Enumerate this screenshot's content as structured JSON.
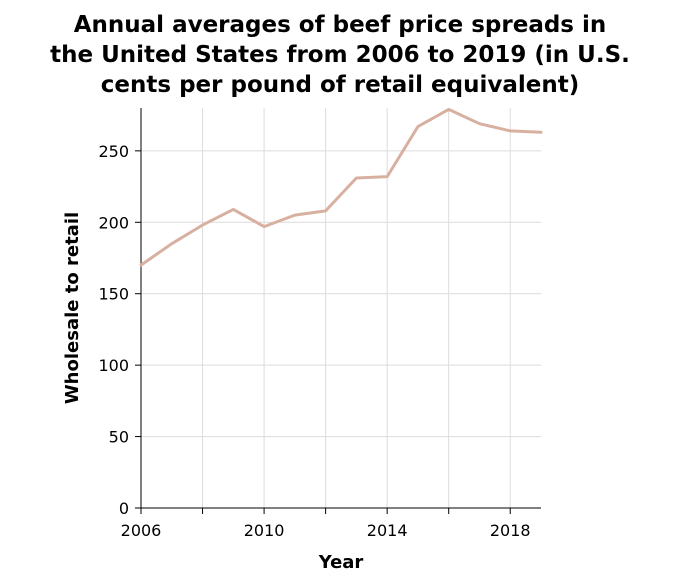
{
  "chart_data": {
    "type": "line",
    "title_lines": [
      "Annual averages of beef price spreads in",
      "the United States from 2006 to 2019 (in U.S.",
      "cents per pound of retail equivalent)"
    ],
    "xlabel": "Year",
    "ylabel": "Wholesale to retail",
    "x": [
      2006,
      2007,
      2008,
      2009,
      2010,
      2011,
      2012,
      2013,
      2014,
      2015,
      2016,
      2017,
      2018,
      2019
    ],
    "series": [
      {
        "values": [
          170,
          185,
          198,
          209,
          197,
          205,
          208,
          231,
          232,
          267,
          279,
          269,
          264,
          263
        ]
      }
    ],
    "xlim": [
      2006,
      2019
    ],
    "ylim": [
      0,
      280
    ],
    "xticks": [
      2006,
      2010,
      2014,
      2018
    ],
    "xgrid": [
      2006,
      2008,
      2010,
      2012,
      2014,
      2016,
      2018
    ],
    "yticks": [
      0,
      50,
      100,
      150,
      200,
      250
    ],
    "grid": true,
    "line_color": "#d8b0a0"
  }
}
